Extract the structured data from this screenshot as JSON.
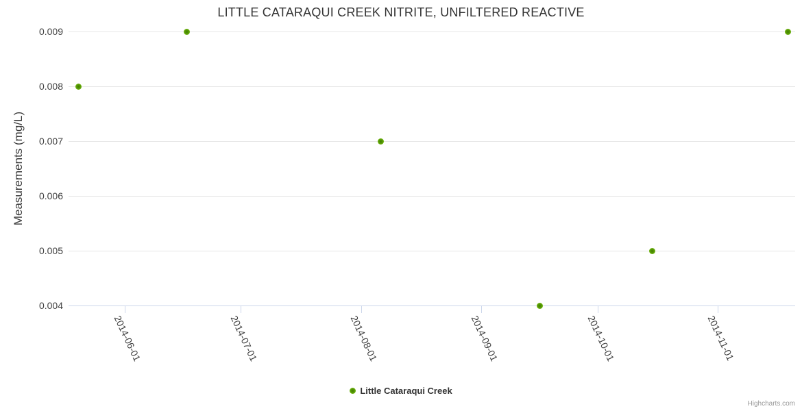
{
  "chart_data": {
    "type": "scatter",
    "title": "LITTLE CATARAQUI CREEK NITRITE, UNFILTERED REACTIVE",
    "xlabel": "",
    "ylabel": "Measurements (mg/L)",
    "ylim": [
      0.004,
      0.009
    ],
    "y_ticks": [
      "0.009",
      "0.008",
      "0.007",
      "0.006",
      "0.005",
      "0.004"
    ],
    "x_axis": {
      "type": "datetime",
      "tick_labels": [
        "2014-06-01",
        "2014-07-01",
        "2014-08-01",
        "2014-09-01",
        "2014-10-01",
        "2014-11-01"
      ],
      "min": "2014-05-17T12:00:00Z",
      "max": "2014-11-20T19:00:00Z"
    },
    "grid": "horizontal-only",
    "series": [
      {
        "name": "Little Cataraqui Creek",
        "points": [
          {
            "x": "2014-05-20",
            "y": 0.008
          },
          {
            "x": "2014-06-17",
            "y": 0.009
          },
          {
            "x": "2014-08-06",
            "y": 0.007
          },
          {
            "x": "2014-09-16",
            "y": 0.004
          },
          {
            "x": "2014-10-15",
            "y": 0.005
          },
          {
            "x": "2014-11-19",
            "y": 0.009
          }
        ]
      }
    ],
    "legend": {
      "position": "bottom-center",
      "label": "Little Cataraqui Creek"
    },
    "credits_label": "Highcharts.com",
    "colors": {
      "marker_outer": "#7fc41c",
      "marker_inner": "#3f7d02",
      "grid": "#e6e6e6",
      "axis": "#ccd6eb",
      "title_text": "#333333",
      "label_text": "#3f3f3f",
      "credits_text": "#999999"
    }
  }
}
